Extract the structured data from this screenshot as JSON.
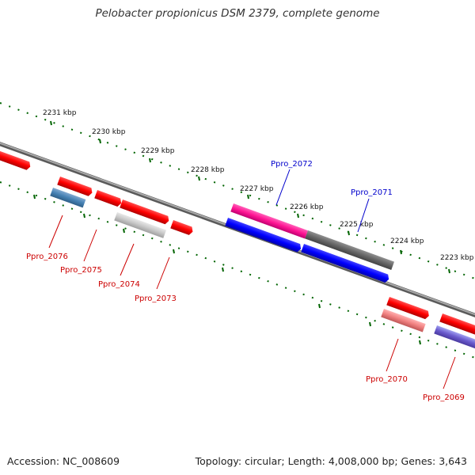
{
  "title": "Pelobacter propionicus DSM 2379, complete genome",
  "accession": "Accession: NC_008609",
  "summary": "Topology: circular; Length: 4,008,000 bp; Genes: 3,643",
  "colors": {
    "backbone": "#808080",
    "tick": "#006400",
    "label_red": "#cc0000",
    "label_blue": "#0000cc"
  },
  "scale_labels": [
    "2231 kbp",
    "2230 kbp",
    "2229 kbp",
    "2228 kbp",
    "2227 kbp",
    "2226 kbp",
    "2225 kbp",
    "2224 kbp",
    "2223 kbp"
  ],
  "genes": [
    {
      "label": "Ppro_2076",
      "color": "#cc0000"
    },
    {
      "label": "Ppro_2075",
      "color": "#cc0000"
    },
    {
      "label": "Ppro_2074",
      "color": "#cc0000"
    },
    {
      "label": "Ppro_2073",
      "color": "#cc0000"
    },
    {
      "label": "Ppro_2072",
      "color": "#0000cc"
    },
    {
      "label": "Ppro_2071",
      "color": "#0000cc"
    },
    {
      "label": "Ppro_2070",
      "color": "#cc0000"
    },
    {
      "label": "Ppro_2069",
      "color": "#cc0000"
    }
  ]
}
